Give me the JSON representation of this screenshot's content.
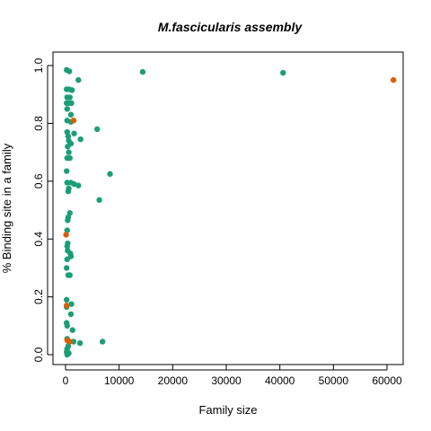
{
  "chart_data": {
    "type": "scatter",
    "title": "M.fascicularis assembly",
    "xlabel": "Family size",
    "ylabel": "% Binding site in a family",
    "xlim": [
      0,
      62000
    ],
    "ylim": [
      0,
      1.0
    ],
    "x_ticks": [
      0,
      10000,
      20000,
      30000,
      40000,
      50000,
      60000
    ],
    "y_ticks": [
      0.0,
      0.2,
      0.4,
      0.6,
      0.8,
      1.0
    ],
    "x_tick_labels": [
      "0",
      "10000",
      "20000",
      "30000",
      "40000",
      "50000",
      "60000"
    ],
    "y_tick_labels": [
      "0.0",
      "0.2",
      "0.4",
      "0.6",
      "0.8",
      "1.0"
    ],
    "grid": false,
    "legend": "none",
    "colors": {
      "green": "#1B9E77",
      "orange": "#D95F02"
    },
    "series": [
      {
        "color": "#1B9E77",
        "points": [
          [
            200,
            0.985
          ],
          [
            700,
            0.98
          ],
          [
            14400,
            0.978
          ],
          [
            40600,
            0.975
          ],
          [
            2400,
            0.95
          ],
          [
            200,
            0.918
          ],
          [
            600,
            0.918
          ],
          [
            1200,
            0.915
          ],
          [
            300,
            0.89
          ],
          [
            800,
            0.89
          ],
          [
            200,
            0.87
          ],
          [
            700,
            0.87
          ],
          [
            1100,
            0.87
          ],
          [
            300,
            0.85
          ],
          [
            1000,
            0.83
          ],
          [
            300,
            0.81
          ],
          [
            1000,
            0.805
          ],
          [
            5900,
            0.78
          ],
          [
            300,
            0.77
          ],
          [
            1600,
            0.765
          ],
          [
            500,
            0.755
          ],
          [
            2800,
            0.745
          ],
          [
            600,
            0.74
          ],
          [
            1000,
            0.73
          ],
          [
            400,
            0.72
          ],
          [
            600,
            0.7
          ],
          [
            300,
            0.68
          ],
          [
            800,
            0.68
          ],
          [
            200,
            0.635
          ],
          [
            8300,
            0.625
          ],
          [
            300,
            0.595
          ],
          [
            1000,
            0.595
          ],
          [
            1600,
            0.59
          ],
          [
            2400,
            0.585
          ],
          [
            600,
            0.575
          ],
          [
            500,
            0.565
          ],
          [
            6300,
            0.535
          ],
          [
            800,
            0.49
          ],
          [
            500,
            0.475
          ],
          [
            400,
            0.465
          ],
          [
            300,
            0.43
          ],
          [
            400,
            0.385
          ],
          [
            300,
            0.375
          ],
          [
            400,
            0.36
          ],
          [
            900,
            0.35
          ],
          [
            1000,
            0.34
          ],
          [
            300,
            0.33
          ],
          [
            200,
            0.3
          ],
          [
            500,
            0.275
          ],
          [
            800,
            0.275
          ],
          [
            200,
            0.19
          ],
          [
            1100,
            0.175
          ],
          [
            200,
            0.165
          ],
          [
            1000,
            0.14
          ],
          [
            200,
            0.11
          ],
          [
            300,
            0.1
          ],
          [
            1300,
            0.085
          ],
          [
            300,
            0.055
          ],
          [
            6900,
            0.045
          ],
          [
            2700,
            0.04
          ],
          [
            1500,
            0.045
          ],
          [
            700,
            0.045
          ],
          [
            500,
            0.03
          ],
          [
            300,
            0.02
          ],
          [
            200,
            0.01
          ],
          [
            300,
            0.0
          ],
          [
            600,
            0.005
          ]
        ]
      },
      {
        "color": "#D95F02",
        "points": [
          [
            61200,
            0.95
          ],
          [
            1500,
            0.81
          ],
          [
            100,
            0.415
          ],
          [
            200,
            0.17
          ],
          [
            300,
            0.05
          ],
          [
            800,
            0.045
          ]
        ]
      }
    ]
  }
}
